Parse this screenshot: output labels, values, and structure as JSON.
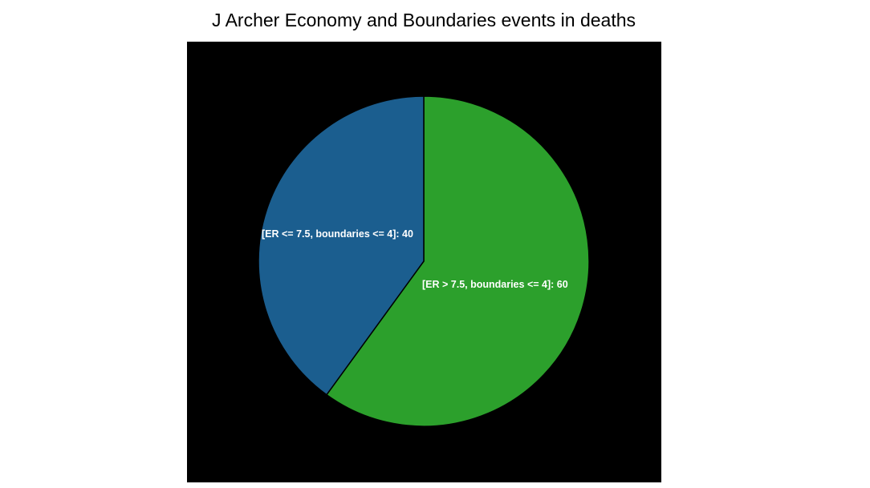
{
  "chart_data": {
    "type": "pie",
    "title": "J Archer Economy and Boundaries events in deaths",
    "slices": [
      {
        "label": "[ER > 7.5, boundaries <= 4]: 60",
        "value": 60,
        "color": "#2ca02c"
      },
      {
        "label": "[ER <= 7.5, boundaries <= 4]: 40",
        "value": 40,
        "color": "#1b5e8f"
      }
    ],
    "background": "#000000",
    "legend": "none"
  }
}
